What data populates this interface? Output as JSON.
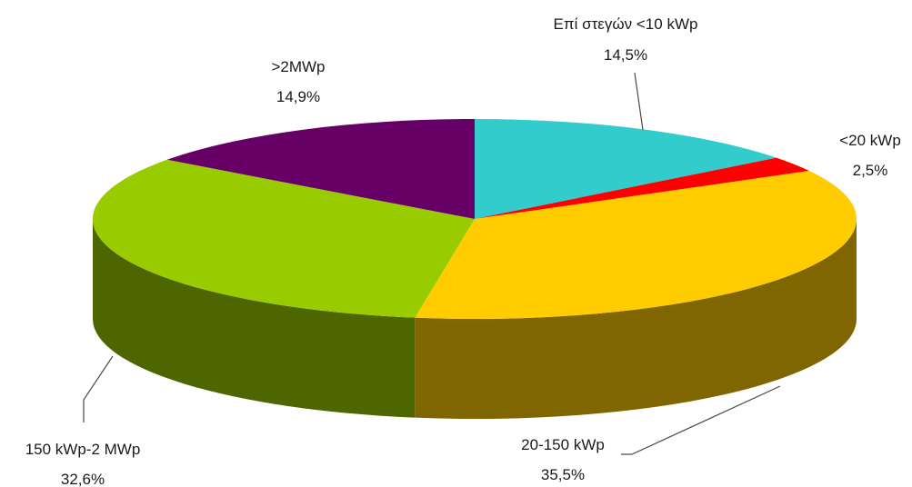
{
  "chart_data": {
    "type": "pie",
    "style": "3d",
    "title": "",
    "slices": [
      {
        "label": "Επί στεγών <10 kWp",
        "value": 14.5,
        "value_label": "14,5%",
        "color": "#33CCCC",
        "side_color": "#1F8C8C"
      },
      {
        "label": "<20 kWp",
        "value": 2.5,
        "value_label": "2,5%",
        "color": "#FF0000",
        "side_color": "#A80000"
      },
      {
        "label": "20-150 kWp",
        "value": 35.5,
        "value_label": "35,5%",
        "color": "#FFCC00",
        "side_color": "#806600"
      },
      {
        "label": "150 kWp-2 MWp",
        "value": 32.6,
        "value_label": "32,6%",
        "color": "#99CC00",
        "side_color": "#4D6600"
      },
      {
        "label": ">2MWp",
        "value": 14.9,
        "value_label": "14,9%",
        "color": "#660066",
        "side_color": "#330033"
      }
    ]
  }
}
